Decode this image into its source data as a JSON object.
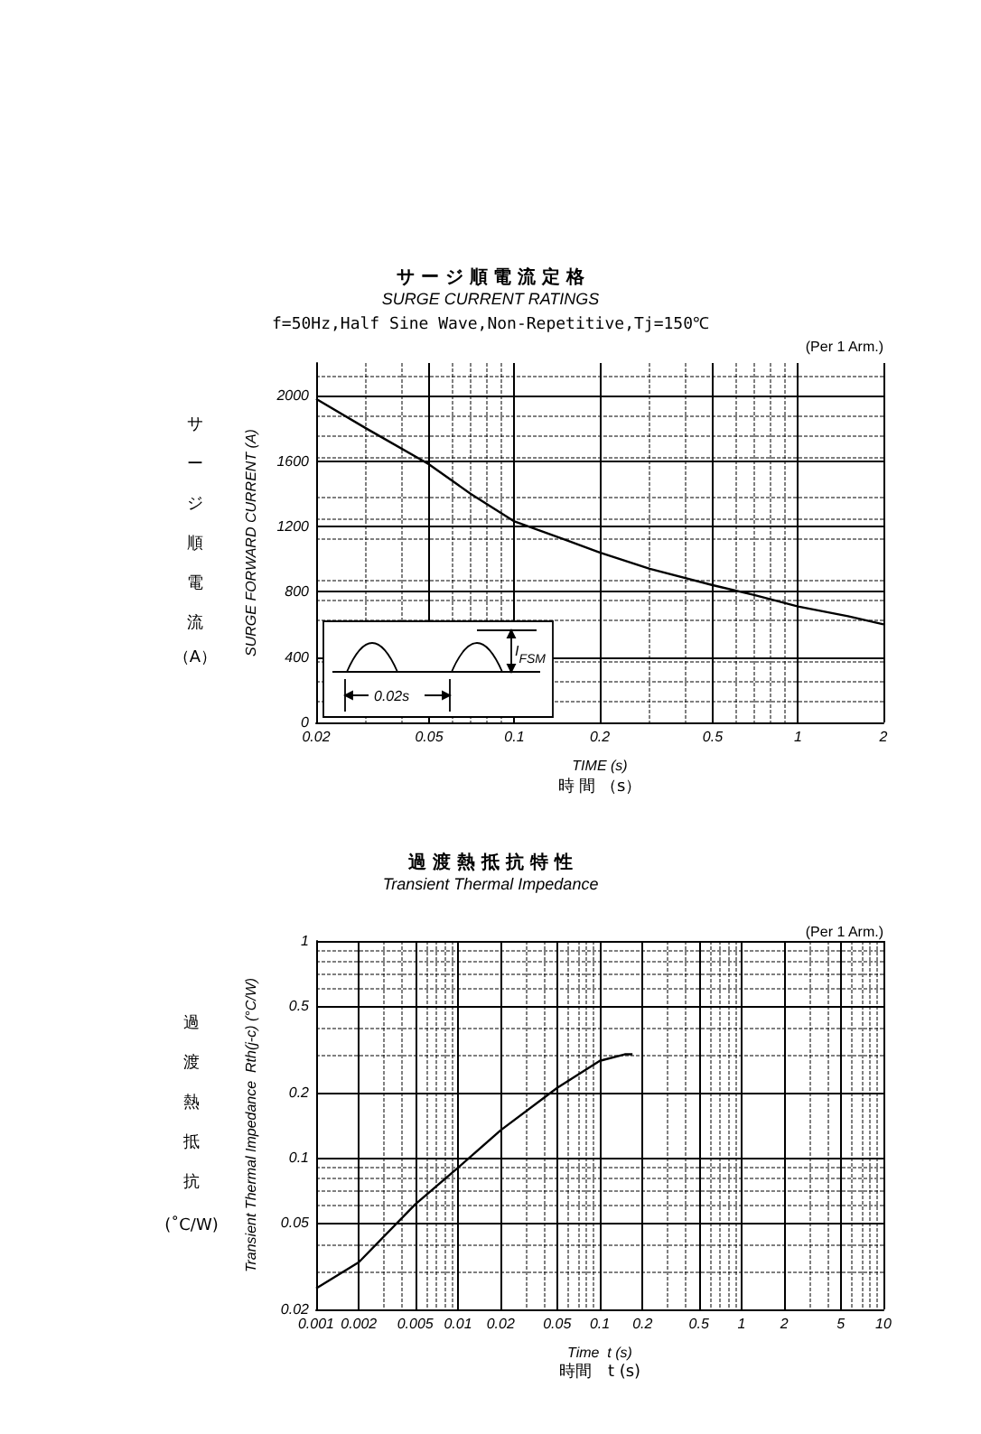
{
  "chart_data": [
    {
      "type": "line",
      "title": "サ ー ジ 順 電 流 定 格",
      "subtitle": "SURGE CURRENT RATINGS",
      "xlabel": "TIME (s)",
      "ylabel": "SURGE FORWARD CURRENT (A)",
      "annotations": [
        "f=50Hz,Half Sine Wave,Non-Repetitive,Tj=150℃",
        "(Per 1 Arm.)",
        "サージ順電流",
        "（A）",
        "時 間 （s）",
        "I$_{FSM}$",
        "0.02s"
      ],
      "x": [
        0.02,
        0.03,
        0.05,
        0.07,
        0.1,
        0.15,
        0.2,
        0.3,
        0.5,
        0.7,
        1,
        1.5,
        2
      ],
      "series": [
        {
          "color": "#000000",
          "values": [
            1980,
            1800,
            1580,
            1400,
            1230,
            1120,
            1040,
            940,
            840,
            780,
            710,
            650,
            600
          ]
        }
      ],
      "log": "x",
      "xlim": [
        0.02,
        2
      ],
      "xticks": [
        0.02,
        0.05,
        0.1,
        0.2,
        0.5,
        1,
        2
      ],
      "ylim": [
        0,
        2200
      ],
      "yticks": [
        0,
        400,
        800,
        1200,
        1600,
        2000
      ],
      "grid": true
    },
    {
      "type": "line",
      "title": "過 渡 熱 抵 抗 特 性",
      "subtitle": "Transient Thermal Impedance",
      "xlabel": "Time  t (s)",
      "ylabel": "Transient Thermal Impedance  Rth(j-c) (°C/W)",
      "annotations": [
        "(Per 1 Arm.)",
        "過渡熱抵抗",
        "(˚C/W)",
        "時間　t (s)"
      ],
      "x": [
        0.001,
        0.002,
        0.005,
        0.01,
        0.02,
        0.05,
        0.1,
        0.15,
        0.17
      ],
      "series": [
        {
          "color": "#000000",
          "values": [
            0.025,
            0.033,
            0.061,
            0.09,
            0.134,
            0.21,
            0.28,
            0.3,
            0.3
          ]
        }
      ],
      "log": "xy",
      "xlim": [
        0.001,
        10
      ],
      "xticks": [
        0.001,
        0.002,
        0.005,
        0.01,
        0.02,
        0.05,
        0.1,
        0.2,
        0.5,
        1,
        2,
        5,
        10
      ],
      "ylim": [
        0.02,
        1
      ],
      "yticks": [
        0.02,
        0.05,
        0.1,
        0.2,
        0.5,
        1
      ],
      "grid": true
    }
  ]
}
